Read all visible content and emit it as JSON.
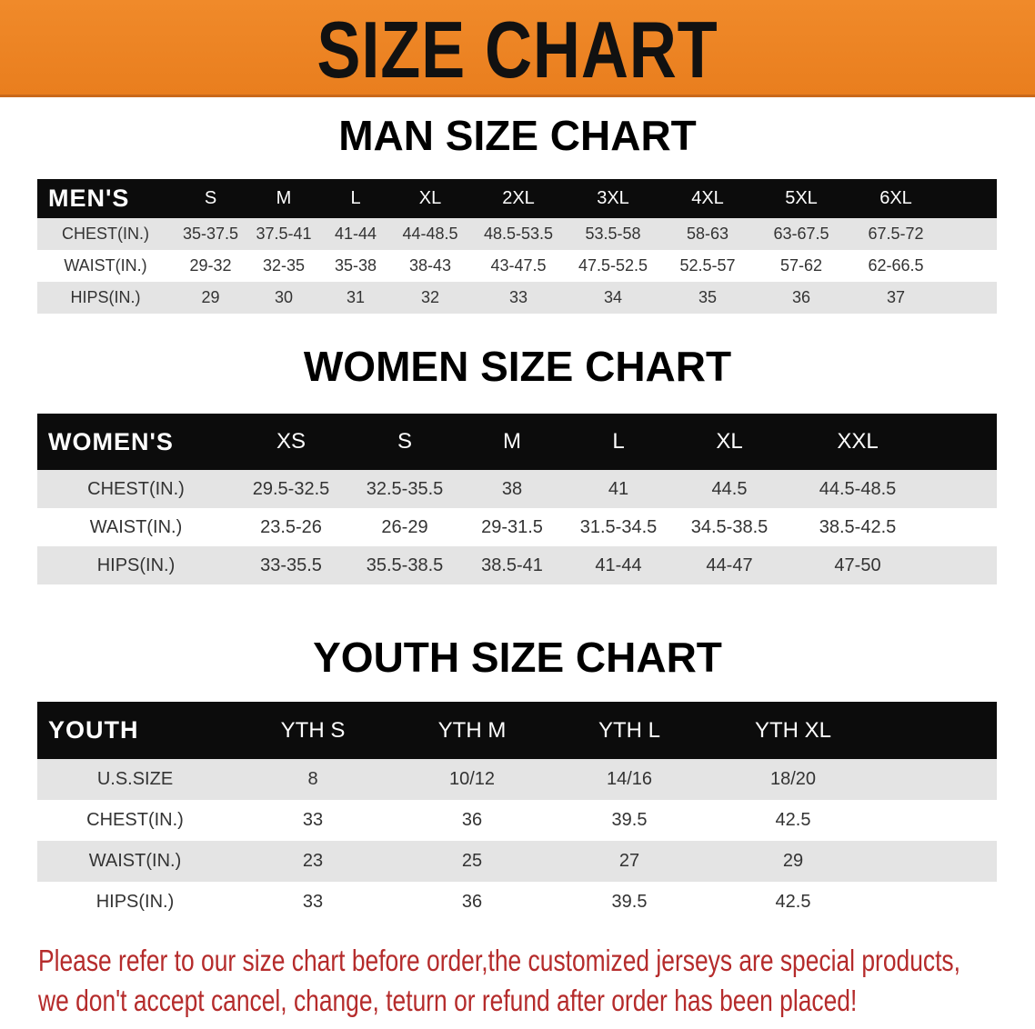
{
  "banner_title": "SIZE CHART",
  "colors": {
    "banner": "#ee8524",
    "header_row": "#0c0c0c",
    "stripe": "#e4e4e4",
    "notice": "#b52b2b"
  },
  "men": {
    "title": "MAN SIZE CHART",
    "header": [
      "MEN'S",
      "S",
      "M",
      "L",
      "XL",
      "2XL",
      "3XL",
      "4XL",
      "5XL",
      "6XL"
    ],
    "rows": [
      [
        "CHEST(IN.)",
        "35-37.5",
        "37.5-41",
        "41-44",
        "44-48.5",
        "48.5-53.5",
        "53.5-58",
        "58-63",
        "63-67.5",
        "67.5-72"
      ],
      [
        "WAIST(IN.)",
        "29-32",
        "32-35",
        "35-38",
        "38-43",
        "43-47.5",
        "47.5-52.5",
        "52.5-57",
        "57-62",
        "62-66.5"
      ],
      [
        "HIPS(IN.)",
        "29",
        "30",
        "31",
        "32",
        "33",
        "34",
        "35",
        "36",
        "37"
      ]
    ]
  },
  "women": {
    "title": "WOMEN SIZE CHART",
    "header": [
      "WOMEN'S",
      "XS",
      "S",
      "M",
      "L",
      "XL",
      "XXL"
    ],
    "rows": [
      [
        "CHEST(IN.)",
        "29.5-32.5",
        "32.5-35.5",
        "38",
        "41",
        "44.5",
        "44.5-48.5"
      ],
      [
        "WAIST(IN.)",
        "23.5-26",
        "26-29",
        "29-31.5",
        "31.5-34.5",
        "34.5-38.5",
        "38.5-42.5"
      ],
      [
        "HIPS(IN.)",
        "33-35.5",
        "35.5-38.5",
        "38.5-41",
        "41-44",
        "44-47",
        "47-50"
      ]
    ]
  },
  "youth": {
    "title": "YOUTH SIZE CHART",
    "header": [
      "YOUTH",
      "YTH S",
      "YTH M",
      "YTH L",
      "YTH XL"
    ],
    "rows": [
      [
        "U.S.SIZE",
        "8",
        "10/12",
        "14/16",
        "18/20"
      ],
      [
        "CHEST(IN.)",
        "33",
        "36",
        "39.5",
        "42.5"
      ],
      [
        "WAIST(IN.)",
        "23",
        "25",
        "27",
        "29"
      ],
      [
        "HIPS(IN.)",
        "33",
        "36",
        "39.5",
        "42.5"
      ]
    ]
  },
  "notice": {
    "line1": "Please refer to our size chart before order,the customized jerseys are special products,",
    "line2": "we don't accept cancel, change, teturn or refund after order has been placed!"
  }
}
